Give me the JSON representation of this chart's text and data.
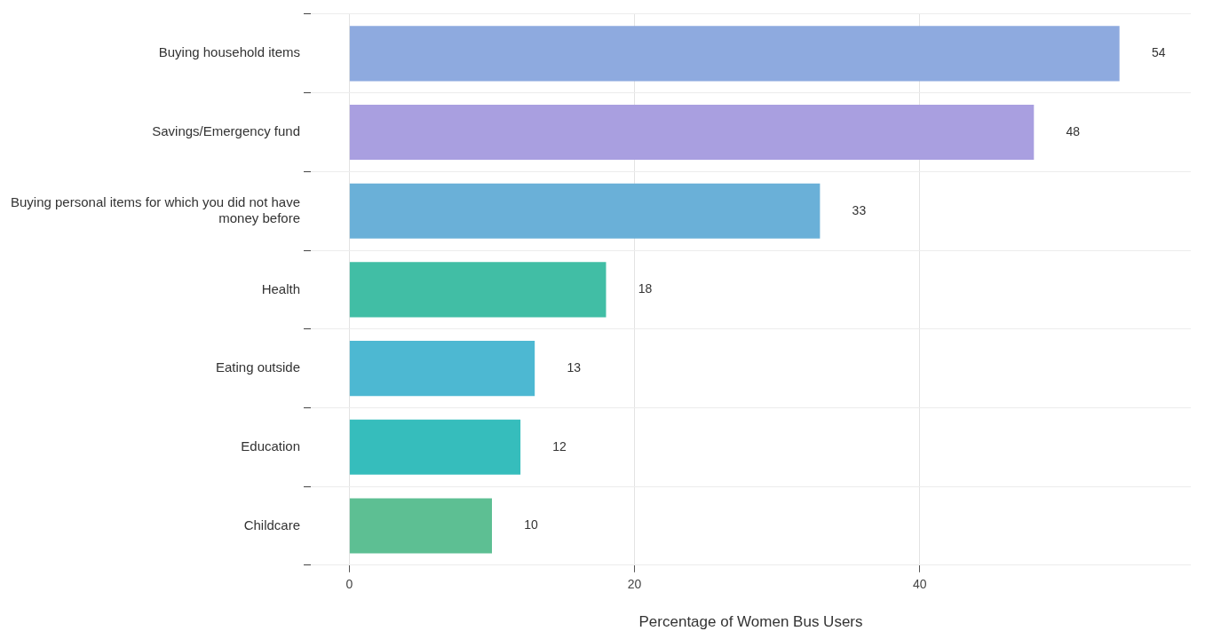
{
  "chart_data": {
    "type": "bar",
    "orientation": "horizontal",
    "xlabel": "Percentage of Women Bus Users",
    "categories": [
      "Buying household items",
      "Savings/Emergency fund",
      "Buying personal items for which you did not have money before",
      "Health",
      "Eating outside",
      "Education",
      "Childcare"
    ],
    "values": [
      54,
      48,
      33,
      18,
      13,
      12,
      10
    ],
    "colors": [
      "#8eaadf",
      "#a99fe0",
      "#6ab0d8",
      "#41bea5",
      "#4db8d2",
      "#36bdbc",
      "#5dbf93"
    ],
    "xlim": [
      -2.7,
      59
    ],
    "xticks": [
      0,
      20,
      40
    ],
    "grid": true,
    "data_labels": true
  }
}
